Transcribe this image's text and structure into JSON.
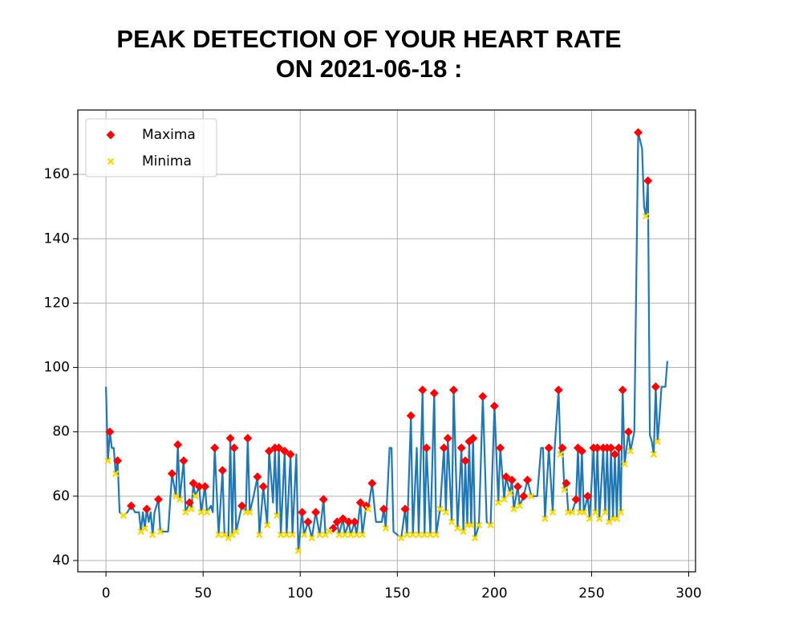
{
  "chart_data": {
    "type": "line",
    "title": [
      "PEAK DETECTION OF YOUR HEART RATE",
      "ON 2021-06-18 :"
    ],
    "xlim": [
      -14.5,
      303.5
    ],
    "ylim": [
      36.5,
      180
    ],
    "xticks": [
      0,
      50,
      100,
      150,
      200,
      250,
      300
    ],
    "yticks": [
      40,
      60,
      80,
      100,
      120,
      140,
      160
    ],
    "grid": true,
    "legend": "upper left",
    "series": [
      {
        "type": "line",
        "color": "#1f77b4",
        "x": [
          0,
          1,
          2,
          3,
          4,
          5,
          6,
          7,
          9,
          11,
          13,
          15,
          17,
          18,
          19,
          20,
          21,
          22,
          23,
          24,
          25,
          27,
          28,
          32,
          34,
          36,
          37,
          38,
          40,
          41,
          43,
          44,
          45,
          46,
          48,
          49,
          51,
          52,
          54,
          55,
          56,
          58,
          60,
          61,
          63,
          64,
          65,
          66,
          67,
          70,
          72,
          73,
          74,
          76,
          78,
          79,
          81,
          83,
          84,
          86,
          87,
          88,
          89,
          90,
          92,
          93,
          95,
          96,
          98,
          99,
          101,
          102,
          104,
          106,
          108,
          110,
          112,
          113,
          115,
          117,
          119,
          120,
          122,
          123,
          125,
          126,
          128,
          129,
          131,
          132,
          134,
          135,
          137,
          139,
          142,
          143,
          144,
          146,
          147,
          148,
          152,
          154,
          155,
          157,
          158,
          160,
          161,
          163,
          164,
          165,
          167,
          169,
          170,
          172,
          174,
          175,
          176,
          178,
          179,
          181,
          183,
          184,
          185,
          186,
          187,
          188,
          189,
          190,
          192,
          194,
          196,
          198,
          200,
          202,
          203,
          205,
          206,
          208,
          209,
          210,
          212,
          213,
          215,
          217,
          219,
          222,
          224,
          225,
          226,
          228,
          230,
          231,
          233,
          234,
          235,
          236,
          237,
          238,
          240,
          242,
          243,
          244,
          245,
          246,
          248,
          249,
          251,
          252,
          253,
          254,
          256,
          257,
          258,
          259,
          260,
          261,
          262,
          263,
          264,
          265,
          266,
          267,
          269,
          270,
          272,
          274,
          276,
          277,
          278,
          279,
          280,
          281,
          282,
          283,
          284,
          285,
          286,
          288,
          289
        ],
        "values": [
          94,
          71,
          80,
          75,
          75,
          67,
          71,
          55,
          54,
          55,
          57,
          55,
          55,
          49,
          55,
          50,
          56,
          52,
          55,
          48,
          55,
          59,
          49,
          49,
          67,
          60,
          76,
          59,
          71,
          55,
          58,
          56,
          64,
          60,
          63,
          55,
          63,
          55,
          57,
          55,
          75,
          48,
          68,
          48,
          47,
          78,
          48,
          75,
          49,
          57,
          55,
          78,
          55,
          60,
          66,
          48,
          63,
          51,
          74,
          58,
          75,
          54,
          75,
          48,
          74,
          48,
          73,
          48,
          73,
          43,
          55,
          48,
          52,
          47,
          55,
          48,
          59,
          48,
          49,
          50,
          52,
          48,
          53,
          48,
          52,
          48,
          52,
          48,
          58,
          48,
          57,
          56,
          64,
          52,
          52,
          56,
          50,
          75,
          75,
          49,
          47,
          56,
          48,
          85,
          48,
          75,
          48,
          93,
          48,
          75,
          48,
          92,
          48,
          56,
          75,
          55,
          78,
          52,
          93,
          50,
          75,
          49,
          71,
          51,
          77,
          51,
          78,
          47,
          51,
          91,
          52,
          51,
          88,
          58,
          75,
          59,
          66,
          61,
          65,
          56,
          63,
          57,
          60,
          65,
          60,
          60,
          75,
          75,
          53,
          75,
          55,
          75,
          93,
          73,
          75,
          62,
          64,
          55,
          55,
          59,
          75,
          55,
          74,
          55,
          60,
          53,
          75,
          55,
          75,
          53,
          75,
          55,
          75,
          52,
          75,
          53,
          73,
          53,
          75,
          55,
          93,
          70,
          80,
          74,
          80,
          173,
          168,
          150,
          147,
          158,
          79,
          77,
          73,
          94,
          77,
          85,
          94,
          94,
          102
        ]
      },
      {
        "type": "scatter",
        "name": "Maxima",
        "marker": "diamond",
        "color": "#ff0000",
        "x": [
          2,
          6,
          13,
          21,
          27,
          34,
          37,
          40,
          43,
          45,
          48,
          51,
          56,
          60,
          64,
          66,
          70,
          73,
          78,
          81,
          84,
          87,
          89,
          92,
          95,
          101,
          104,
          108,
          112,
          117,
          119,
          122,
          125,
          128,
          131,
          134,
          137,
          143,
          154,
          157,
          163,
          165,
          169,
          174,
          176,
          179,
          183,
          185,
          187,
          189,
          194,
          200,
          203,
          206,
          209,
          212,
          215,
          217,
          228,
          233,
          235,
          237,
          242,
          243,
          245,
          248,
          251,
          253,
          256,
          258,
          260,
          262,
          264,
          266,
          269,
          274,
          279,
          283
        ],
        "values": [
          80,
          71,
          57,
          56,
          59,
          67,
          76,
          71,
          58,
          64,
          63,
          63,
          75,
          68,
          78,
          75,
          57,
          78,
          66,
          63,
          74,
          75,
          75,
          74,
          73,
          55,
          52,
          55,
          59,
          50,
          52,
          53,
          52,
          52,
          58,
          57,
          64,
          56,
          56,
          85,
          93,
          75,
          92,
          75,
          78,
          93,
          75,
          71,
          77,
          78,
          91,
          88,
          75,
          66,
          65,
          63,
          60,
          65,
          75,
          93,
          75,
          64,
          59,
          75,
          74,
          60,
          75,
          75,
          75,
          75,
          75,
          73,
          75,
          93,
          80,
          173,
          158,
          94
        ]
      },
      {
        "type": "scatter",
        "name": "Minima",
        "marker": "x",
        "color": "#ffd700",
        "x": [
          1,
          5,
          9,
          18,
          20,
          24,
          28,
          36,
          38,
          41,
          44,
          46,
          49,
          52,
          58,
          61,
          63,
          65,
          67,
          72,
          74,
          79,
          83,
          88,
          90,
          93,
          96,
          99,
          102,
          106,
          110,
          113,
          115,
          120,
          123,
          126,
          129,
          132,
          135,
          144,
          152,
          155,
          158,
          161,
          164,
          167,
          170,
          172,
          175,
          178,
          181,
          184,
          186,
          188,
          190,
          192,
          198,
          202,
          205,
          208,
          210,
          213,
          219,
          226,
          230,
          234,
          236,
          238,
          240,
          244,
          246,
          249,
          252,
          254,
          257,
          259,
          261,
          263,
          265,
          267,
          270,
          278,
          282,
          284
        ],
        "values": [
          71,
          67,
          54,
          49,
          50,
          48,
          49,
          60,
          59,
          55,
          56,
          60,
          55,
          55,
          48,
          48,
          47,
          48,
          49,
          55,
          55,
          48,
          51,
          54,
          48,
          48,
          48,
          43,
          48,
          47,
          48,
          48,
          49,
          48,
          48,
          48,
          48,
          48,
          56,
          50,
          47,
          48,
          48,
          48,
          48,
          48,
          48,
          56,
          55,
          52,
          50,
          49,
          51,
          51,
          47,
          51,
          51,
          58,
          59,
          61,
          56,
          57,
          60,
          53,
          55,
          73,
          62,
          55,
          55,
          55,
          55,
          53,
          55,
          53,
          55,
          52,
          53,
          53,
          55,
          70,
          74,
          147,
          73,
          77
        ]
      }
    ]
  }
}
